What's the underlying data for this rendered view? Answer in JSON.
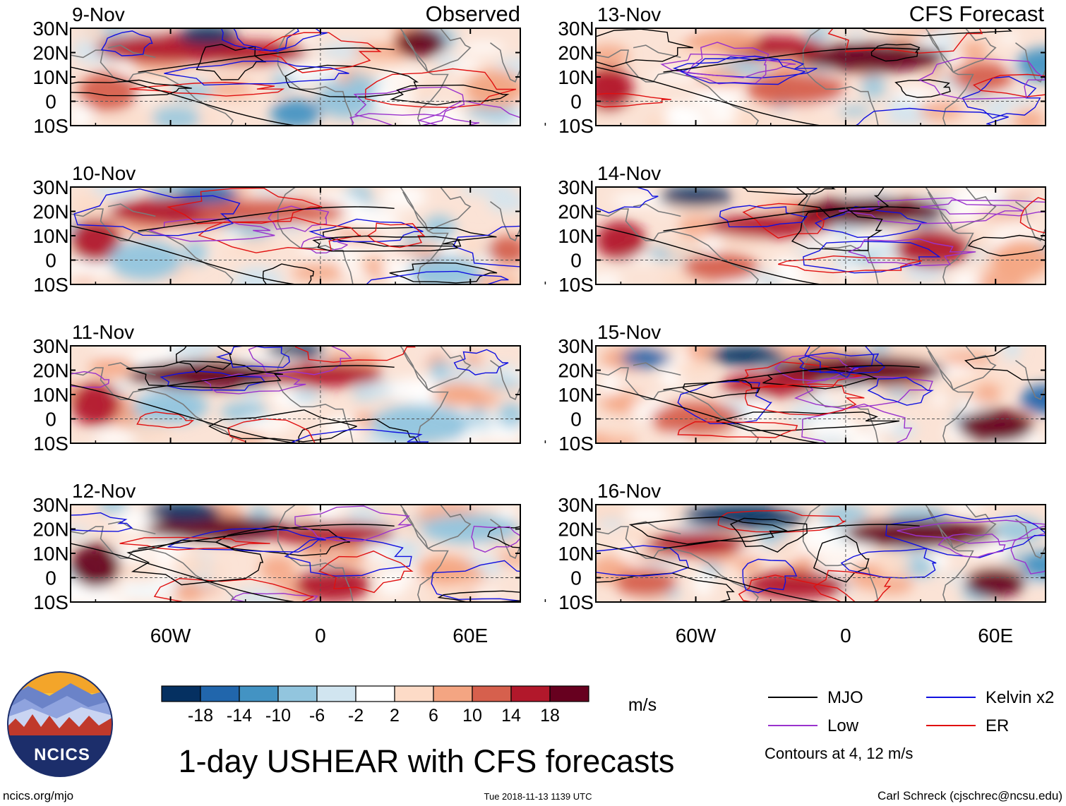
{
  "left_column_label": "Observed",
  "right_column_label": "CFS Forecast",
  "panels_left": [
    {
      "date": "9-Nov"
    },
    {
      "date": "10-Nov"
    },
    {
      "date": "11-Nov"
    },
    {
      "date": "12-Nov"
    }
  ],
  "panels_right": [
    {
      "date": "13-Nov"
    },
    {
      "date": "14-Nov"
    },
    {
      "date": "15-Nov"
    },
    {
      "date": "16-Nov"
    }
  ],
  "lat_labels": [
    "30N",
    "20N",
    "10N",
    "0",
    "10S"
  ],
  "lon_labels": [
    "60W",
    "0",
    "60E"
  ],
  "colorbar": {
    "ticks": [
      "-18",
      "-14",
      "-10",
      "-6",
      "-2",
      "2",
      "6",
      "10",
      "14",
      "18"
    ],
    "unit": "m/s",
    "colors": [
      "#053061",
      "#2166ac",
      "#4393c3",
      "#92c5de",
      "#d1e5f0",
      "#ffffff",
      "#fddbc7",
      "#f4a582",
      "#d6604d",
      "#b2182b",
      "#67001f"
    ]
  },
  "legend": {
    "items": [
      {
        "label": "MJO",
        "color": "#000000"
      },
      {
        "label": "Kelvin x2",
        "color": "#1010e0"
      },
      {
        "label": "Low",
        "color": "#9a32cd"
      },
      {
        "label": "ER",
        "color": "#e01010"
      }
    ],
    "note": "Contours at 4, 12 m/s"
  },
  "logo": {
    "text": "NCICS"
  },
  "title": "1-day USHEAR with CFS forecasts",
  "footer": {
    "url": "ncics.org/mjo",
    "timestamp": "Tue 2018-11-13 1139 UTC",
    "credit": "Carl Schreck (cjschrec@ncsu.edu)"
  }
}
